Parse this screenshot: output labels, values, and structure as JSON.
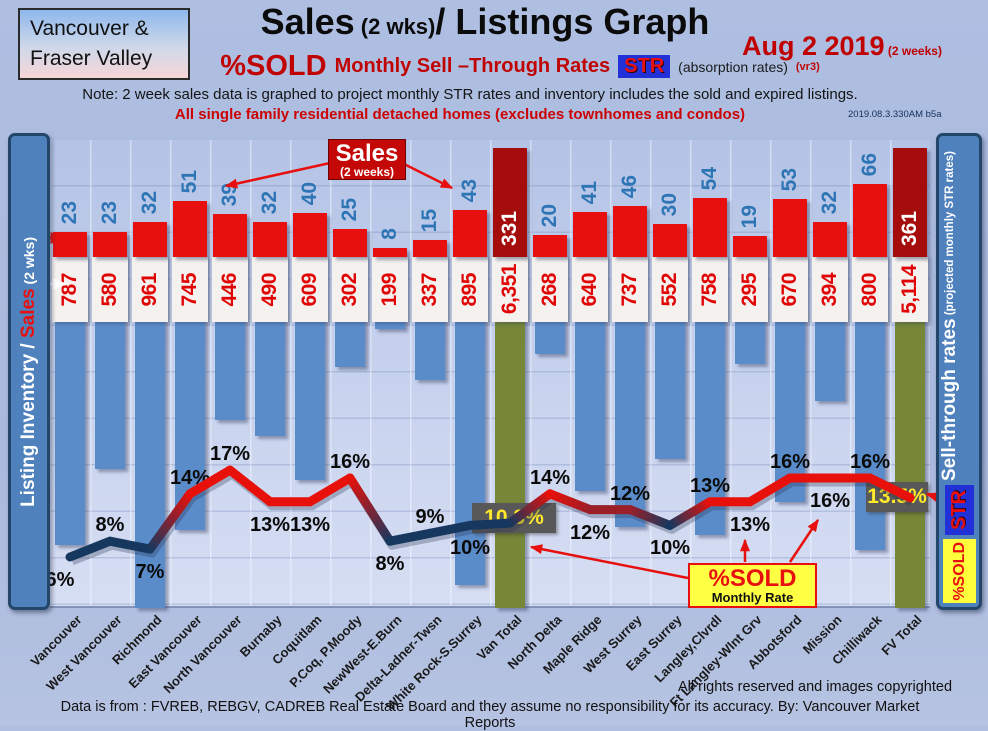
{
  "header": {
    "brand_line1": "Vancouver &",
    "brand_line2": "Fraser Valley",
    "title_main": "Sales",
    "title_mid": " (2 wks)",
    "title_rest": "/ Listings Graph",
    "date": "Aug 2 2019",
    "date_suffix": " (2 weeks)",
    "psold": "%SOLD",
    "str_line": "Monthly Sell –Through Rates",
    "str_badge": "STR",
    "absorption": "(absorption rates)",
    "version_tag": "(vr3)",
    "note": "Note: 2 week sales data is graphed to project monthly STR rates and inventory includes the sold and expired listings.",
    "subtitle_red": "All single family residential detached homes (excludes townhomes and condos)",
    "build_stamp": "2019.08.3.330AM b5a"
  },
  "left_rail": {
    "label_inventory": "Listing Inventory / ",
    "label_sales": "Sales",
    "label_suffix": " (2  wks)"
  },
  "right_rail": {
    "label_main": "Sell-through rates",
    "label_sub": "  (projected monthly STR rates)",
    "str_badge": "STR",
    "psold_badge": "%SOLD"
  },
  "callouts": {
    "sales_box_title": "Sales",
    "sales_box_sub": "(2 weeks)",
    "psold_box_title": "%SOLD",
    "psold_box_sub": "Monthly Rate"
  },
  "footer": {
    "rights": "All rights reserved and  images copyrighted",
    "source": "Data is from : FVREB, REBGV, CADREB Real Estate Board and they assume no responsibility for its accuracy. By: Vancouver Market Reports"
  },
  "colors": {
    "bar_sales": "#e8100e",
    "bar_sales_total": "#a50d0d",
    "bar_inventory": "#5b8cca",
    "bar_inventory_total": "#768738",
    "line_low": "#17385e",
    "line_high": "#e8100e",
    "accent_red": "#c00000",
    "badge_blue": "#2230d8",
    "badge_yellow": "#ffff44",
    "pct_box_bg": "#585858",
    "pct_box_text": "#ffe92a"
  },
  "chart_data": {
    "type": "bar+line",
    "title": "Sales (2 wks)/ Listings Graph",
    "categories": [
      "Vancouver",
      "West Vancouver",
      "Richmond",
      "East Vancouver",
      "North Vancouver",
      "Burnaby",
      "Coquitlam",
      "P.Coq, P.Moody",
      "NewWest-E.Burn",
      "Delta-Ladner-Twsn",
      "White Rock-S.Surrey",
      "Van Total",
      "North Delta",
      "Maple Ridge",
      "West Surrey",
      "East Surrey",
      "Langley,Clvrdl",
      "Ft Langley-Wlnt Grv",
      "Abbotsford",
      "Mission",
      "Chilliwack",
      "FV Total"
    ],
    "series": [
      {
        "name": "Sales (2 weeks)",
        "values": [
          23,
          23,
          32,
          51,
          39,
          32,
          40,
          25,
          8,
          15,
          43,
          331,
          20,
          41,
          46,
          30,
          54,
          19,
          53,
          32,
          66,
          361
        ]
      },
      {
        "name": "Listing Inventory (includes sold and expired)",
        "values": [
          787,
          580,
          961,
          745,
          446,
          490,
          609,
          302,
          199,
          337,
          895,
          6351,
          268,
          640,
          737,
          552,
          758,
          295,
          670,
          394,
          800,
          5114
        ]
      },
      {
        "name": "%SOLD Monthly Sell-Through Rate",
        "values": [
          6,
          8,
          7,
          14,
          17,
          13,
          13,
          16,
          8,
          9,
          10,
          10.3,
          14,
          12,
          12,
          10,
          13,
          13,
          16,
          16,
          16,
          13.5
        ]
      }
    ],
    "inventory_display": [
      "787",
      "580",
      "961",
      "745",
      "446",
      "490",
      "609",
      "302",
      "199",
      "337",
      "895",
      "6,351",
      "268",
      "640",
      "737",
      "552",
      "758",
      "295",
      "670",
      "394",
      "800",
      "5,114"
    ],
    "str_labels": [
      "6%",
      "8%",
      "7%",
      "14%",
      "17%",
      "13%",
      "13%",
      "16%",
      "8%",
      "9%",
      "10%",
      "10.3%",
      "14%",
      "12%",
      "12%",
      "10%",
      "13%",
      "13%",
      "16%",
      "16%",
      "16%",
      "13.5%"
    ],
    "label_side": [
      "below",
      "above",
      "below",
      "above",
      "above",
      "below",
      "below",
      "above",
      "below",
      "above",
      "below",
      "box",
      "above",
      "below",
      "above",
      "below",
      "above",
      "below",
      "above",
      "below",
      "above",
      "box"
    ],
    "total_indices": [
      11,
      21
    ],
    "ylabel_left": "Listing Inventory / Sales (2 wks)",
    "ylabel_right": "Sell-through rates (projected monthly STR rates)",
    "grid": true,
    "legend_position": "none"
  }
}
